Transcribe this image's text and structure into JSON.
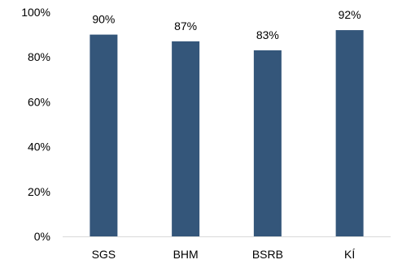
{
  "chart_data": {
    "type": "bar",
    "categories": [
      "SGS",
      "BHM",
      "BSRB",
      "KÍ"
    ],
    "values": [
      90,
      87,
      83,
      92
    ],
    "data_labels": [
      "90%",
      "87%",
      "83%",
      "92%"
    ],
    "ylim": [
      0,
      100
    ],
    "yticks": [
      0,
      20,
      40,
      60,
      80,
      100
    ],
    "ytick_labels": [
      "0%",
      "20%",
      "40%",
      "60%",
      "80%",
      "100%"
    ],
    "title": "",
    "xlabel": "",
    "ylabel": "",
    "grid": false,
    "legend": false,
    "bar_color": "#34567a"
  }
}
